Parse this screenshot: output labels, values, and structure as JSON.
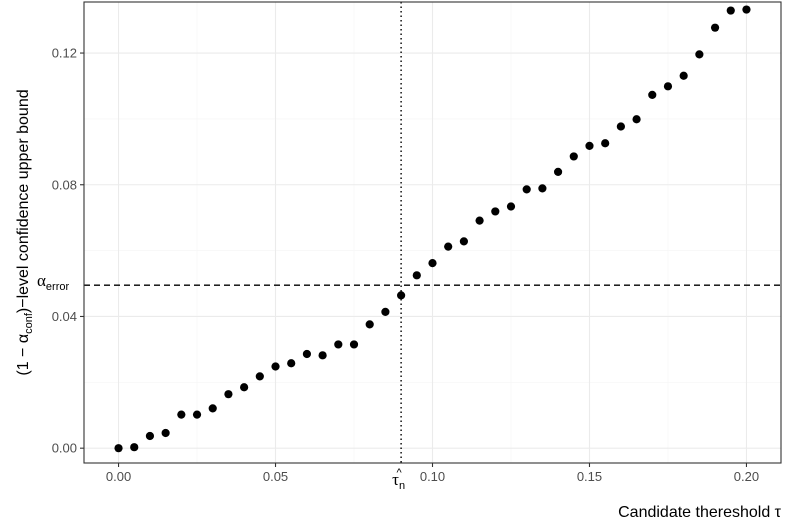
{
  "chart_data": {
    "type": "scatter",
    "xlabel": "Candidate thereshold τ",
    "ylabel_parts": {
      "pre": "(1 − α",
      "sub": "conf",
      "post": ")−level confidence upper bound"
    },
    "xlim": [
      -0.011,
      0.211
    ],
    "ylim": [
      -0.0045,
      0.1355
    ],
    "x_ticks": [
      0.0,
      0.05,
      0.1,
      0.15,
      0.2
    ],
    "x_tick_labels": [
      "0.00",
      "0.05",
      "0.10",
      "0.15",
      "0.20"
    ],
    "y_ticks": [
      0.0,
      0.04,
      0.08,
      0.12
    ],
    "y_tick_labels": [
      "0.00",
      "0.04",
      "0.08",
      "0.12"
    ],
    "grid": true,
    "point_color": "#000000",
    "series": [
      {
        "x": [
          0.0,
          0.005,
          0.01,
          0.015,
          0.02,
          0.025,
          0.03,
          0.035,
          0.04,
          0.045,
          0.05,
          0.055,
          0.06,
          0.065,
          0.07,
          0.075,
          0.08,
          0.085,
          0.09,
          0.095,
          0.1,
          0.105,
          0.11,
          0.115,
          0.12,
          0.125,
          0.13,
          0.135,
          0.14,
          0.145,
          0.15,
          0.155,
          0.16,
          0.165,
          0.17,
          0.175,
          0.18,
          0.185,
          0.19,
          0.195,
          0.2
        ],
        "y": [
          0.0,
          0.0003,
          0.0037,
          0.0046,
          0.0102,
          0.0102,
          0.0121,
          0.0164,
          0.0185,
          0.0218,
          0.0248,
          0.0258,
          0.0286,
          0.0282,
          0.0315,
          0.0315,
          0.0376,
          0.0414,
          0.0464,
          0.0525,
          0.0562,
          0.0612,
          0.0628,
          0.0691,
          0.0719,
          0.0734,
          0.0786,
          0.0789,
          0.0839,
          0.0886,
          0.0918,
          0.0926,
          0.0977,
          0.0999,
          0.1073,
          0.1099,
          0.1131,
          0.1196,
          0.1277,
          0.1329,
          0.1332
        ]
      }
    ],
    "reference_lines": {
      "alpha_error": {
        "y": 0.0495,
        "style": "dashed",
        "label": "α",
        "label_sub": "error"
      },
      "tau_hat": {
        "x": 0.09,
        "style": "dotted",
        "label": "τ",
        "label_hat": "^",
        "label_sub": "n"
      }
    }
  },
  "colors": {
    "panel_border": "#333333",
    "grid_major": "#ebebeb",
    "grid_minor": "#f5f5f5",
    "tick_text": "#4d4d4d"
  }
}
